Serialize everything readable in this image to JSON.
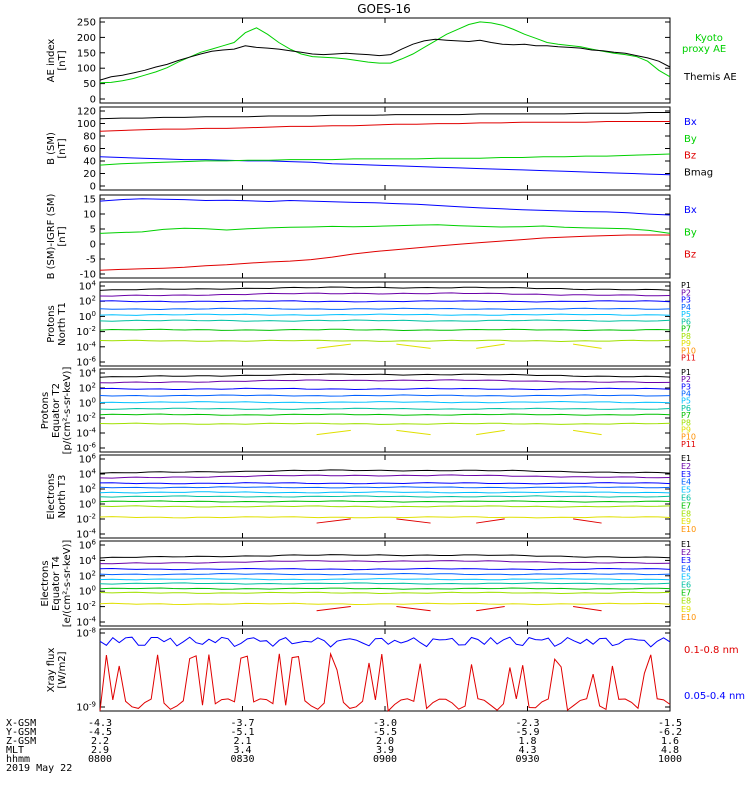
{
  "title": "GOES-16",
  "colors": {
    "black": "#000000",
    "green": "#00d000",
    "blue": "#0000ff",
    "red": "#e00000",
    "p": [
      "#000000",
      "#6a00a8",
      "#0000ff",
      "#0060ff",
      "#00c0ff",
      "#00c0a0",
      "#00c000",
      "#a0e000",
      "#e0e000",
      "#ff9000",
      "#e00000"
    ]
  },
  "chart_data": [
    {
      "type": "line",
      "panel": "ae",
      "ylabel": [
        "AE index",
        "[nT]"
      ],
      "yticks": [
        "250",
        "200",
        "150",
        "100",
        "50",
        "0"
      ],
      "ylim": [
        0,
        260
      ],
      "series": [
        {
          "name": "Kyoto proxy AE",
          "color": "green",
          "values": [
            62,
            63,
            68,
            75,
            85,
            95,
            108,
            125,
            140,
            155,
            165,
            175,
            185,
            215,
            230,
            210,
            185,
            165,
            150,
            142,
            140,
            138,
            135,
            130,
            125,
            122,
            122,
            135,
            150,
            170,
            190,
            210,
            225,
            240,
            248,
            245,
            238,
            225,
            210,
            198,
            185,
            180,
            176,
            172,
            165,
            158,
            152,
            148,
            142,
            128,
            100,
            80
          ]
        },
        {
          "name": "Themis AE",
          "color": "black",
          "values": [
            70,
            80,
            85,
            92,
            100,
            110,
            118,
            130,
            140,
            150,
            158,
            162,
            165,
            175,
            170,
            168,
            165,
            160,
            155,
            150,
            148,
            150,
            152,
            150,
            148,
            145,
            148,
            165,
            180,
            190,
            195,
            192,
            190,
            188,
            192,
            185,
            180,
            178,
            180,
            175,
            175,
            172,
            170,
            168,
            162,
            160,
            155,
            152,
            145,
            138,
            128,
            110
          ]
        }
      ]
    },
    {
      "type": "line",
      "panel": "b",
      "ylabel": [
        "B (SM)",
        "[nT]"
      ],
      "yticks": [
        "120",
        "100",
        "80",
        "60",
        "40",
        "20",
        "0"
      ],
      "ylim": [
        0,
        120
      ],
      "series": [
        {
          "name": "Bx",
          "color": "blue",
          "values": [
            48,
            47,
            46,
            45,
            44,
            44,
            43,
            42,
            42,
            41,
            40,
            38,
            37,
            36,
            35,
            34,
            33,
            32,
            31,
            30,
            29,
            28,
            27,
            26,
            25,
            24,
            23,
            22
          ]
        },
        {
          "name": "By",
          "color": "green",
          "values": [
            36,
            38,
            39,
            40,
            41,
            42,
            42,
            43,
            43,
            44,
            44,
            44,
            45,
            45,
            45,
            45,
            46,
            46,
            46,
            47,
            47,
            48,
            48,
            49,
            49,
            50,
            51,
            52
          ]
        },
        {
          "name": "Bz",
          "color": "red",
          "values": [
            85,
            86,
            87,
            88,
            88,
            89,
            89,
            90,
            91,
            92,
            92,
            93,
            93,
            94,
            95,
            95,
            96,
            96,
            97,
            97,
            98,
            98,
            98,
            98,
            99,
            99,
            99,
            99
          ]
        },
        {
          "name": "Bmag",
          "color": "black",
          "values": [
            103,
            104,
            104,
            105,
            105,
            106,
            106,
            106,
            107,
            107,
            107,
            108,
            108,
            108,
            109,
            109,
            109,
            109,
            110,
            110,
            110,
            110,
            110,
            111,
            111,
            111,
            112,
            112
          ]
        }
      ]
    },
    {
      "type": "line",
      "panel": "bigrf",
      "ylabel": [
        "B (SM)-IGRF (SM)",
        "[nT]"
      ],
      "yticks": [
        "15",
        "10",
        "5",
        "0",
        "-5",
        "-10"
      ],
      "ylim": [
        -11,
        16
      ],
      "series": [
        {
          "name": "Bx",
          "color": "blue",
          "values": [
            14,
            14.5,
            14.8,
            14.6,
            14.5,
            14.2,
            14.3,
            14.1,
            13.9,
            14.2,
            14.0,
            13.8,
            13.6,
            13.5,
            13.2,
            13.0,
            12.6,
            12.2,
            11.8,
            11.5,
            11.2,
            11.0,
            10.8,
            10.6,
            10.5,
            10.2,
            9.8,
            9.5
          ]
        },
        {
          "name": "By",
          "color": "green",
          "values": [
            3.5,
            3.8,
            4.0,
            4.8,
            5.2,
            5.0,
            4.6,
            5.0,
            5.3,
            5.5,
            5.6,
            5.8,
            5.7,
            5.8,
            6.0,
            6.2,
            6.3,
            6.0,
            5.8,
            5.6,
            5.7,
            5.9,
            5.5,
            5.3,
            5.2,
            5.0,
            4.5,
            3.5
          ]
        },
        {
          "name": "Bz",
          "color": "red",
          "values": [
            -8.5,
            -8.2,
            -8.0,
            -7.8,
            -7.5,
            -7.0,
            -6.7,
            -6.2,
            -5.8,
            -5.5,
            -5.0,
            -4.2,
            -3.2,
            -2.4,
            -1.8,
            -1.2,
            -0.6,
            0.0,
            0.5,
            1.0,
            1.5,
            2.0,
            2.3,
            2.6,
            2.8,
            3.0,
            3.0,
            3.0
          ]
        }
      ]
    },
    {
      "type": "line",
      "panel": "pn",
      "scale": "log",
      "ylabel": [
        "Protons",
        "North T1"
      ],
      "yticks": [
        "10^4",
        "10^2",
        "10^0",
        "10^-2",
        "10^-4",
        "10^-6"
      ],
      "ylim": [
        -6,
        4
      ],
      "channels": [
        "P1",
        "P2",
        "P3",
        "P4",
        "P5",
        "P6",
        "P7",
        "P8",
        "P9",
        "P10",
        "P11"
      ],
      "levels": [
        3.0,
        2.3,
        1.7,
        0.8,
        0.1,
        -0.6,
        -1.7,
        -3.0,
        null,
        null,
        null
      ]
    },
    {
      "type": "line",
      "panel": "pe",
      "scale": "log",
      "ylabel": [
        "Protons",
        "Equator T2",
        "[p/(cm²-s-sr-keV)]"
      ],
      "yticks": [
        "10^4",
        "10^2",
        "10^0",
        "10^-2",
        "10^-4",
        "10^-6"
      ],
      "ylim": [
        -6,
        4
      ],
      "channels": [
        "P1",
        "P2",
        "P3",
        "P4",
        "P5",
        "P6",
        "P7",
        "P8",
        "P9",
        "P10",
        "P11"
      ],
      "levels": [
        3.0,
        2.3,
        1.6,
        0.8,
        0.0,
        -0.8,
        -1.5,
        -2.6,
        null,
        null,
        null
      ]
    },
    {
      "type": "line",
      "panel": "en",
      "scale": "log",
      "ylabel": [
        "Electrons",
        "North T3"
      ],
      "yticks": [
        "10^6",
        "10^4",
        "10^2",
        "10^0",
        "10^-2",
        "10^-4"
      ],
      "ylim": [
        -4,
        6
      ],
      "channels": [
        "E1",
        "E2",
        "E3",
        "E4",
        "E5",
        "E6",
        "E7",
        "E8",
        "E9",
        "E10"
      ],
      "levels": [
        3.8,
        3.2,
        2.6,
        2.1,
        1.5,
        1.0,
        0.4,
        -0.2,
        -1.5,
        null
      ]
    },
    {
      "type": "line",
      "panel": "ee",
      "scale": "log",
      "ylabel": [
        "Electrons",
        "Equator T4",
        "[e/(cm²-s-sr-keV)]"
      ],
      "yticks": [
        "10^6",
        "10^4",
        "10^2",
        "10^0",
        "10^-2",
        "10^-4"
      ],
      "ylim": [
        -4,
        6
      ],
      "channels": [
        "E1",
        "E2",
        "E3",
        "E4",
        "E5",
        "E6",
        "E7",
        "E8",
        "E9",
        "E10"
      ],
      "levels": [
        4.0,
        3.3,
        2.7,
        2.1,
        1.5,
        1.0,
        0.4,
        -0.1,
        -1.4,
        null
      ]
    },
    {
      "type": "line",
      "panel": "xray",
      "scale": "log",
      "ylabel": [
        "Xray flux",
        "[W/m2]"
      ],
      "yticks": [
        "10^-8",
        "10^-9"
      ],
      "ylim": [
        -9,
        -8
      ],
      "series": [
        {
          "name": "0.1-0.8 nm",
          "color": "red"
        },
        {
          "name": "0.05-0.4 nm",
          "color": "blue"
        }
      ]
    }
  ],
  "footer": {
    "rows": [
      {
        "label": "X-GSM",
        "values": [
          "-4.3",
          "-3.7",
          "-3.0",
          "-2.3",
          "-1.5"
        ]
      },
      {
        "label": "Y-GSM",
        "values": [
          "-4.5",
          "-5.1",
          "-5.5",
          "-5.9",
          "-6.2"
        ]
      },
      {
        "label": "Z-GSM",
        "values": [
          "2.2",
          "2.1",
          "2.0",
          "1.8",
          "1.6"
        ]
      },
      {
        "label": "MLT",
        "values": [
          "2.9",
          "3.4",
          "3.9",
          "4.3",
          "4.8"
        ]
      },
      {
        "label": "hhmm",
        "values": [
          "0800",
          "0830",
          "0900",
          "0930",
          "1000"
        ]
      }
    ],
    "date": "2019 May 22"
  }
}
